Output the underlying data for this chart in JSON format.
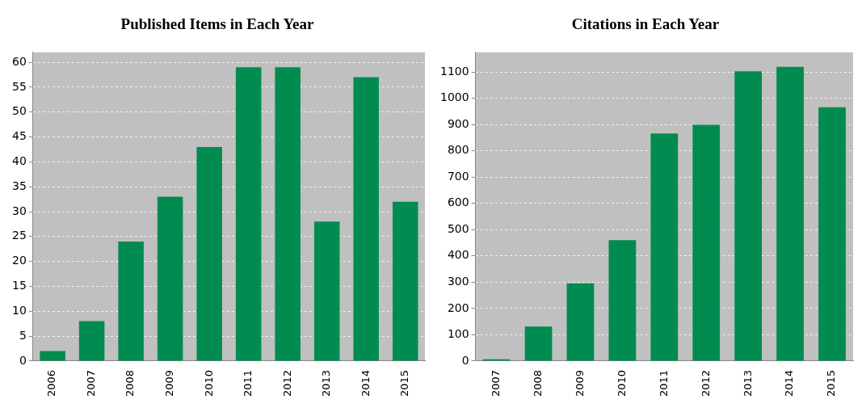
{
  "chart_data": [
    {
      "type": "bar",
      "title": "Published Items in Each Year",
      "categories": [
        "2006",
        "2007",
        "2008",
        "2009",
        "2010",
        "2011",
        "2012",
        "2013",
        "2014",
        "2015"
      ],
      "values": [
        2,
        8,
        24,
        33,
        43,
        59,
        59,
        28,
        57,
        32
      ],
      "color": "#008c50",
      "ylim": [
        0,
        62
      ],
      "yticks": [
        0,
        5,
        10,
        15,
        20,
        25,
        30,
        35,
        40,
        45,
        50,
        55,
        60
      ],
      "grid": "y"
    },
    {
      "type": "bar",
      "title": "Citations in Each Year",
      "categories": [
        "2007",
        "2008",
        "2009",
        "2010",
        "2011",
        "2012",
        "2013",
        "2014",
        "2015"
      ],
      "values": [
        7,
        131,
        296,
        460,
        866,
        899,
        1103,
        1120,
        966
      ],
      "color": "#008c50",
      "ylim": [
        0,
        1175
      ],
      "yticks": [
        0,
        100,
        200,
        300,
        400,
        500,
        600,
        700,
        800,
        900,
        1000,
        1100
      ],
      "grid": "y"
    }
  ]
}
